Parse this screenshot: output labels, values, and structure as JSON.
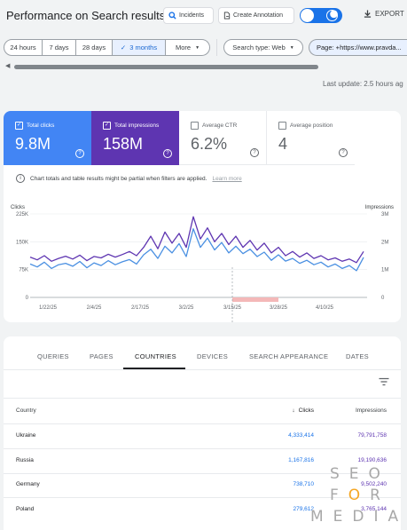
{
  "header": {
    "title": "Performance on Search results",
    "incidents_label": "Incidents",
    "annotation_label": "Create Annotation",
    "export_label": "EXPORT",
    "toggle_on": true
  },
  "filters": {
    "date_ranges": [
      {
        "label": "24 hours",
        "selected": false
      },
      {
        "label": "7 days",
        "selected": false
      },
      {
        "label": "28 days",
        "selected": false
      },
      {
        "label": "3 months",
        "selected": true
      },
      {
        "label": "More",
        "selected": false
      }
    ],
    "search_type": "Search type: Web",
    "page": "Page: +https://www.pravda..."
  },
  "last_update": "Last update: 2.5 hours ag",
  "metrics": {
    "clicks": {
      "label": "Total clicks",
      "value": "9.8M",
      "checked": true,
      "color": "#4285f4"
    },
    "impressions": {
      "label": "Total impressions",
      "value": "158M",
      "checked": true,
      "color": "#5e35b1"
    },
    "ctr": {
      "label": "Average CTR",
      "value": "6.2%",
      "checked": false
    },
    "position": {
      "label": "Average position",
      "value": "4",
      "checked": false
    }
  },
  "notice": {
    "text": "Chart totals and table results might be partial when filters are applied.",
    "link": "Learn more"
  },
  "chart_data": {
    "type": "line",
    "left_axis_label": "Clicks",
    "right_axis_label": "Impressions",
    "left_ticks": [
      "225K",
      "150K",
      "75K",
      "0"
    ],
    "right_ticks": [
      "3M",
      "2M",
      "1M",
      "0"
    ],
    "x_tick_labels": [
      "1/22/25",
      "2/4/25",
      "2/17/25",
      "3/2/25",
      "3/15/25",
      "3/28/25",
      "4/10/25"
    ],
    "left_ylim": [
      0,
      225000
    ],
    "right_ylim": [
      0,
      3000000
    ],
    "x_range": [
      "1/17/25",
      "4/22/25"
    ],
    "grid": true,
    "annotation_band": {
      "from": "3/15/25",
      "to": "3/28/25",
      "color": "#f4b8b8"
    },
    "series": [
      {
        "name": "Clicks",
        "axis": "left",
        "color": "#4a90e2",
        "x": [
          "1/17/25",
          "1/19/25",
          "1/21/25",
          "1/23/25",
          "1/25/25",
          "1/27/25",
          "1/29/25",
          "1/31/25",
          "2/2/25",
          "2/4/25",
          "2/6/25",
          "2/8/25",
          "2/10/25",
          "2/12/25",
          "2/14/25",
          "2/16/25",
          "2/18/25",
          "2/20/25",
          "2/22/25",
          "2/24/25",
          "2/26/25",
          "2/28/25",
          "3/2/25",
          "3/4/25",
          "3/6/25",
          "3/8/25",
          "3/10/25",
          "3/12/25",
          "3/14/25",
          "3/16/25",
          "3/18/25",
          "3/20/25",
          "3/22/25",
          "3/24/25",
          "3/26/25",
          "3/28/25",
          "3/30/25",
          "4/1/25",
          "4/3/25",
          "4/5/25",
          "4/7/25",
          "4/9/25",
          "4/11/25",
          "4/13/25",
          "4/15/25",
          "4/17/25",
          "4/19/25",
          "4/21/25"
        ],
        "values": [
          90000,
          82000,
          95000,
          78000,
          88000,
          92000,
          84000,
          97000,
          80000,
          93000,
          86000,
          99000,
          88000,
          96000,
          102000,
          90000,
          115000,
          130000,
          105000,
          138000,
          120000,
          145000,
          110000,
          185000,
          135000,
          160000,
          128000,
          148000,
          120000,
          138000,
          118000,
          130000,
          110000,
          122000,
          100000,
          115000,
          98000,
          105000,
          92000,
          100000,
          88000,
          95000,
          82000,
          90000,
          78000,
          86000,
          72000,
          108000
        ]
      },
      {
        "name": "Impressions",
        "axis": "right",
        "color": "#5e35b1",
        "x": [
          "1/17/25",
          "1/19/25",
          "1/21/25",
          "1/23/25",
          "1/25/25",
          "1/27/25",
          "1/29/25",
          "1/31/25",
          "2/2/25",
          "2/4/25",
          "2/6/25",
          "2/8/25",
          "2/10/25",
          "2/12/25",
          "2/14/25",
          "2/16/25",
          "2/18/25",
          "2/20/25",
          "2/22/25",
          "2/24/25",
          "2/26/25",
          "2/28/25",
          "3/2/25",
          "3/4/25",
          "3/6/25",
          "3/8/25",
          "3/10/25",
          "3/12/25",
          "3/14/25",
          "3/16/25",
          "3/18/25",
          "3/20/25",
          "3/22/25",
          "3/24/25",
          "3/26/25",
          "3/28/25",
          "3/30/25",
          "4/1/25",
          "4/3/25",
          "4/5/25",
          "4/7/25",
          "4/9/25",
          "4/11/25",
          "4/13/25",
          "4/15/25",
          "4/17/25",
          "4/19/25",
          "4/21/25"
        ],
        "values": [
          1450000,
          1350000,
          1500000,
          1300000,
          1400000,
          1480000,
          1380000,
          1520000,
          1320000,
          1470000,
          1420000,
          1550000,
          1450000,
          1540000,
          1650000,
          1500000,
          1800000,
          2200000,
          1750000,
          2350000,
          1950000,
          2300000,
          1800000,
          2900000,
          2100000,
          2500000,
          2000000,
          2300000,
          1900000,
          2200000,
          1800000,
          2050000,
          1700000,
          1950000,
          1600000,
          1800000,
          1500000,
          1650000,
          1450000,
          1600000,
          1400000,
          1500000,
          1350000,
          1420000,
          1300000,
          1380000,
          1250000,
          1650000
        ]
      }
    ]
  },
  "tabs": [
    {
      "label": "QUERIES",
      "active": false
    },
    {
      "label": "PAGES",
      "active": false
    },
    {
      "label": "COUNTRIES",
      "active": true
    },
    {
      "label": "DEVICES",
      "active": false
    },
    {
      "label": "SEARCH APPEARANCE",
      "active": false
    },
    {
      "label": "DATES",
      "active": false
    }
  ],
  "table": {
    "headers": {
      "country": "Country",
      "clicks": "Clicks",
      "impressions": "Impressions"
    },
    "rows": [
      {
        "country": "Ukraine",
        "clicks": "4,333,414",
        "impressions": "79,791,758"
      },
      {
        "country": "Russia",
        "clicks": "1,167,816",
        "impressions": "19,190,636"
      },
      {
        "country": "Germany",
        "clicks": "738,710",
        "impressions": "9,502,240"
      },
      {
        "country": "Poland",
        "clicks": "279,612",
        "impressions": "3,765,144"
      }
    ]
  },
  "watermark": {
    "line1": "SEO",
    "line2": "FOR",
    "line3": "MEDIA",
    "accent": "#f5a623"
  }
}
